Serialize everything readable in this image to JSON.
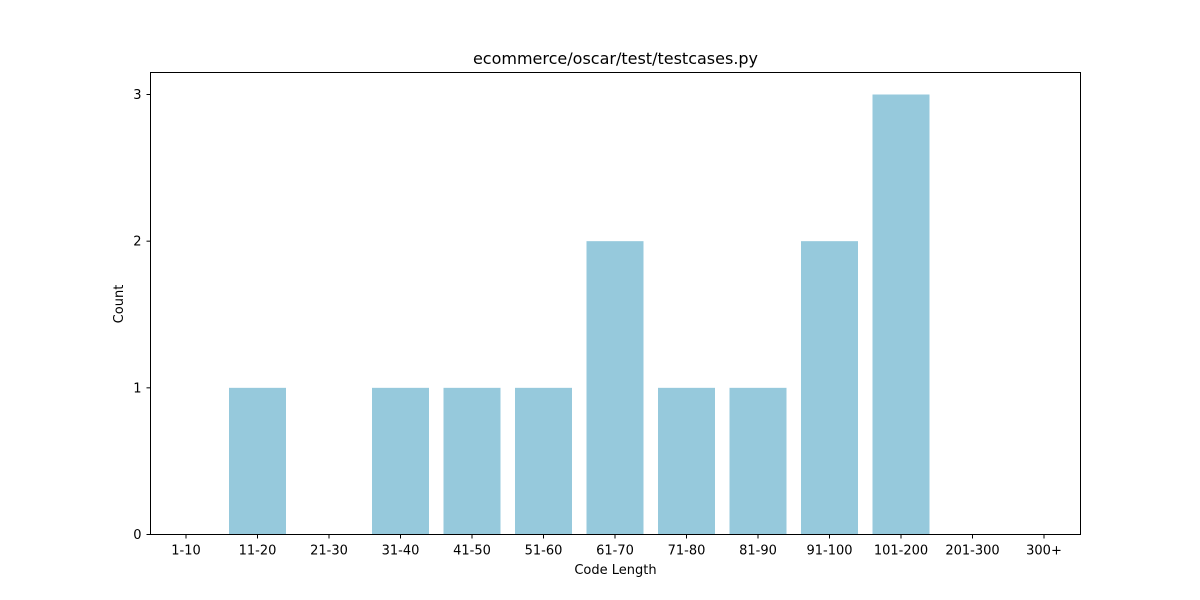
{
  "chart_data": {
    "type": "bar",
    "title": "ecommerce/oscar/test/testcases.py",
    "xlabel": "Code Length",
    "ylabel": "Count",
    "categories": [
      "1-10",
      "11-20",
      "21-30",
      "31-40",
      "41-50",
      "51-60",
      "61-70",
      "71-80",
      "81-90",
      "91-100",
      "101-200",
      "201-300",
      "300+"
    ],
    "values": [
      0,
      1,
      0,
      1,
      1,
      1,
      2,
      1,
      1,
      2,
      3,
      0,
      0
    ],
    "ylim": [
      0,
      3.15
    ],
    "yticks": [
      0,
      1,
      2,
      3
    ],
    "bar_color": "#96c9dc",
    "grid": false,
    "legend": "none"
  }
}
